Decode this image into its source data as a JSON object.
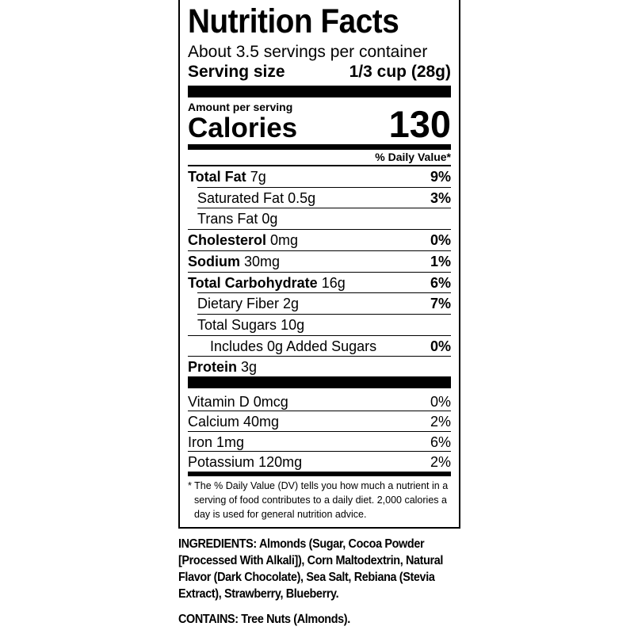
{
  "header": {
    "title": "Nutrition Facts",
    "servings": "About 3.5 servings per container",
    "serving_size_label": "Serving size",
    "serving_size": "1/3 cup (28g)"
  },
  "calories": {
    "amount_label": "Amount per serving",
    "label": "Calories",
    "value": "130"
  },
  "dv_header": "% Daily Value*",
  "nutrients": [
    {
      "name": "Total Fat",
      "amount": "7g",
      "dv": "9%"
    },
    {
      "name": "Saturated Fat",
      "amount": "0.5g",
      "dv": "3%"
    },
    {
      "name": "Trans Fat",
      "amount": "0g"
    },
    {
      "name": "Cholesterol",
      "amount": "0mg",
      "dv": "0%"
    },
    {
      "name": "Sodium",
      "amount": "30mg",
      "dv": "1%"
    },
    {
      "name": "Total Carbohydrate",
      "amount": "16g",
      "dv": "6%"
    },
    {
      "name": "Dietary Fiber",
      "amount": "2g",
      "dv": "7%"
    },
    {
      "name": "Total Sugars",
      "amount": "10g"
    },
    {
      "name": "Includes 0g Added Sugars",
      "dv": "0%"
    },
    {
      "name": "Protein",
      "amount": "3g"
    }
  ],
  "vitamins": [
    {
      "name": "Vitamin D",
      "amount": "0mcg",
      "dv": "0%"
    },
    {
      "name": "Calcium",
      "amount": "40mg",
      "dv": "2%"
    },
    {
      "name": "Iron",
      "amount": "1mg",
      "dv": "6%"
    },
    {
      "name": "Potassium",
      "amount": "120mg",
      "dv": "2%"
    }
  ],
  "footnote": "* The % Daily Value (DV) tells you how much a nutrient in a serving of food contributes to a daily diet. 2,000 calories a day is used for general nutrition advice.",
  "ingredients": {
    "label": "INGREDIENTS:",
    "text": "Almonds (Sugar, Cocoa Powder [Processed With Alkali]), Corn Maltodextrin, Natural Flavor (Dark Chocolate), Sea Salt, Rebiana (Stevia Extract), Strawberry, Blueberry."
  },
  "contains": {
    "label": "CONTAINS:",
    "text": "Tree Nuts (Almonds)."
  }
}
